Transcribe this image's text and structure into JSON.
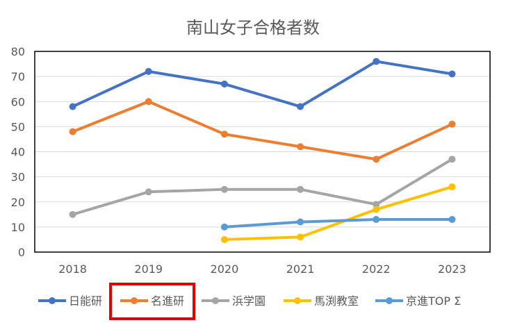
{
  "chart_data": {
    "type": "line",
    "title": "南山女子合格者数",
    "xlabel": "",
    "ylabel": "",
    "x": [
      "2018",
      "2019",
      "2020",
      "2021",
      "2022",
      "2023"
    ],
    "ylim": [
      0,
      80
    ],
    "yticks": [
      0,
      10,
      20,
      30,
      40,
      50,
      60,
      70,
      80
    ],
    "grid": true,
    "legend_position": "bottom",
    "series": [
      {
        "name": "日能研",
        "color": "#4472C4",
        "values": [
          58,
          72,
          67,
          58,
          76,
          71
        ]
      },
      {
        "name": "名進研",
        "color": "#ED7D31",
        "values": [
          48,
          60,
          47,
          42,
          37,
          51
        ]
      },
      {
        "name": "浜学園",
        "color": "#A5A5A5",
        "values": [
          15,
          24,
          25,
          25,
          19,
          37
        ]
      },
      {
        "name": "馬渕教室",
        "color": "#FFC000",
        "values": [
          null,
          null,
          5,
          6,
          17,
          26
        ]
      },
      {
        "name": "京進TOP Σ",
        "color": "#5B9BD5",
        "values": [
          null,
          null,
          10,
          12,
          13,
          13
        ]
      }
    ],
    "highlight": {
      "legend_item": "名進研",
      "color": "#E00000"
    }
  }
}
